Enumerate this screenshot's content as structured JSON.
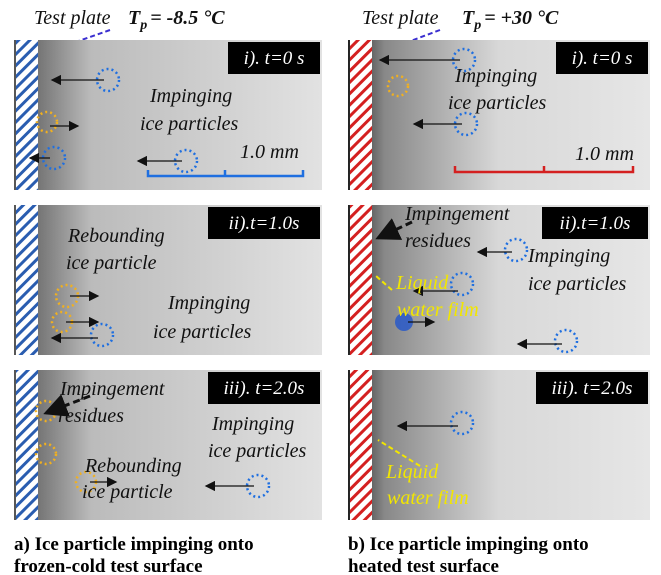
{
  "figure": {
    "left": {
      "header": {
        "label": "Test plate",
        "symbol": "T",
        "subscript": "p",
        "value": "= -8.5 °C"
      },
      "panels": [
        {
          "label": "i). t=0 s",
          "annotations": [
            {
              "lines": [
                "Impinging",
                "ice particles"
              ]
            }
          ],
          "scale": "1.0 mm"
        },
        {
          "label": "ii).t=1.0s",
          "annotations": [
            {
              "lines": [
                "Rebounding",
                "ice particle"
              ]
            },
            {
              "lines": [
                "Impinging",
                "ice particles"
              ]
            }
          ]
        },
        {
          "label": "iii). t=2.0s",
          "annotations": [
            {
              "lines": [
                "Impingement",
                "residues"
              ]
            },
            {
              "lines": [
                "Impinging",
                "ice particles"
              ]
            },
            {
              "lines": [
                "Rebounding",
                "ice particle"
              ]
            }
          ]
        }
      ],
      "caption": [
        "a) Ice particle impinging onto",
        "frozen-cold test surface"
      ]
    },
    "right": {
      "header": {
        "label": "Test plate",
        "symbol": "T",
        "subscript": "p",
        "value": "= +30 °C"
      },
      "panels": [
        {
          "label": "i). t=0 s",
          "annotations": [
            {
              "lines": [
                "Impinging",
                "ice particles"
              ]
            }
          ],
          "scale": "1.0 mm"
        },
        {
          "label": "ii).t=1.0s",
          "annotations": [
            {
              "lines": [
                "Impingement",
                "residues"
              ]
            },
            {
              "lines": [
                "Impinging",
                "ice particles"
              ]
            },
            {
              "lines": [
                "Liquid",
                "water film"
              ]
            }
          ]
        },
        {
          "label": "iii). t=2.0s",
          "annotations": [
            {
              "lines": [
                "Liquid",
                "water film"
              ]
            }
          ]
        }
      ],
      "caption": [
        "b) Ice particle impinging onto",
        "heated test surface"
      ]
    }
  }
}
